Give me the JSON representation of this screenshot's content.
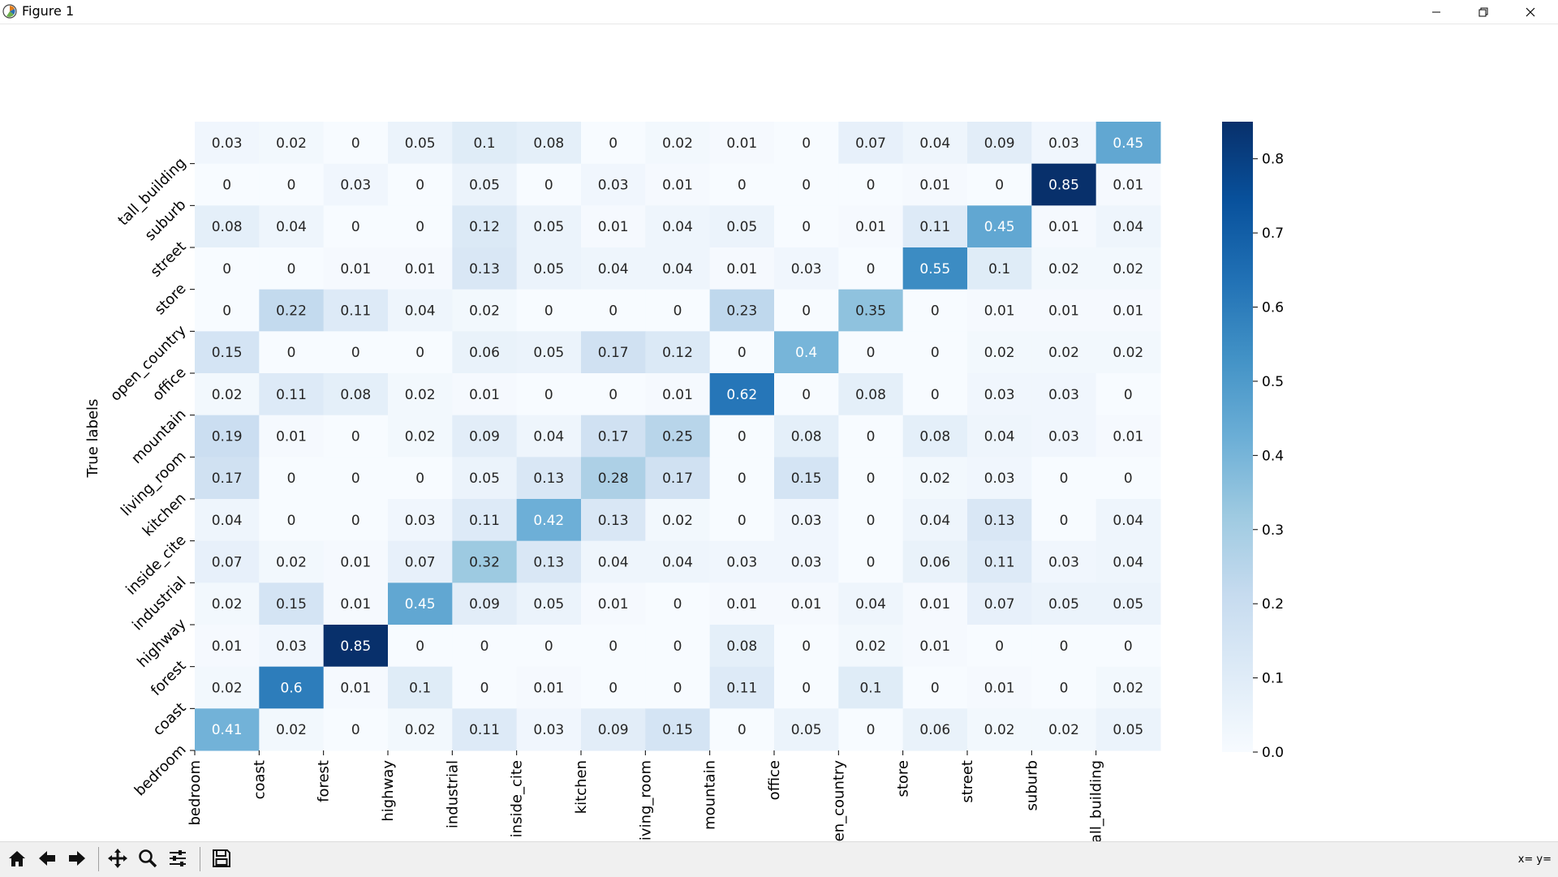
{
  "window": {
    "title": "Figure 1"
  },
  "toolbar": {
    "buttons": [
      "home-button",
      "back-button",
      "forward-button",
      "pan-button",
      "zoom-button",
      "configure-subplots-button",
      "save-button"
    ],
    "coords_text": "x= y="
  },
  "colorbar": {
    "ticks": [
      "0.0",
      "0.1",
      "0.2",
      "0.3",
      "0.4",
      "0.5",
      "0.6",
      "0.7",
      "0.8"
    ],
    "tick_values": [
      0,
      0.1,
      0.2,
      0.3,
      0.4,
      0.5,
      0.6,
      0.7,
      0.8
    ],
    "max": 0.85
  },
  "chart_data": {
    "type": "heatmap",
    "ylabel": "True labels",
    "x_tick_labels": [
      "bedroom",
      "coast",
      "forest",
      "highway",
      "industrial",
      "inside_cite",
      "kitchen",
      "living_room",
      "mountain",
      "office",
      "open_country",
      "store",
      "street",
      "suburb",
      "tall_building"
    ],
    "y_tick_labels": [
      "bedroom",
      "coast",
      "forest",
      "highway",
      "industrial",
      "inside_cite",
      "kitchen",
      "living_room",
      "mountain",
      "office",
      "open_country",
      "store",
      "street",
      "suburb",
      "tall_building"
    ],
    "rows": [
      [
        "0.03",
        "0.02",
        "0",
        "0.05",
        "0.1",
        "0.08",
        "0",
        "0.02",
        "0.01",
        "0",
        "0.07",
        "0.04",
        "0.09",
        "0.03",
        "0.45"
      ],
      [
        "0",
        "0",
        "0.03",
        "0",
        "0.05",
        "0",
        "0.03",
        "0.01",
        "0",
        "0",
        "0",
        "0.01",
        "0",
        "0.85",
        "0.01"
      ],
      [
        "0.08",
        "0.04",
        "0",
        "0",
        "0.12",
        "0.05",
        "0.01",
        "0.04",
        "0.05",
        "0",
        "0.01",
        "0.11",
        "0.45",
        "0.01",
        "0.04"
      ],
      [
        "0",
        "0",
        "0.01",
        "0.01",
        "0.13",
        "0.05",
        "0.04",
        "0.04",
        "0.01",
        "0.03",
        "0",
        "0.55",
        "0.1",
        "0.02",
        "0.02"
      ],
      [
        "0",
        "0.22",
        "0.11",
        "0.04",
        "0.02",
        "0",
        "0",
        "0",
        "0.23",
        "0",
        "0.35",
        "0",
        "0.01",
        "0.01",
        "0.01"
      ],
      [
        "0.15",
        "0",
        "0",
        "0",
        "0.06",
        "0.05",
        "0.17",
        "0.12",
        "0",
        "0.4",
        "0",
        "0",
        "0.02",
        "0.02",
        "0.02"
      ],
      [
        "0.02",
        "0.11",
        "0.08",
        "0.02",
        "0.01",
        "0",
        "0",
        "0.01",
        "0.62",
        "0",
        "0.08",
        "0",
        "0.03",
        "0.03",
        "0"
      ],
      [
        "0.19",
        "0.01",
        "0",
        "0.02",
        "0.09",
        "0.04",
        "0.17",
        "0.25",
        "0",
        "0.08",
        "0",
        "0.08",
        "0.04",
        "0.03",
        "0.01"
      ],
      [
        "0.17",
        "0",
        "0",
        "0",
        "0.05",
        "0.13",
        "0.28",
        "0.17",
        "0",
        "0.15",
        "0",
        "0.02",
        "0.03",
        "0",
        "0"
      ],
      [
        "0.04",
        "0",
        "0",
        "0.03",
        "0.11",
        "0.42",
        "0.13",
        "0.02",
        "0",
        "0.03",
        "0",
        "0.04",
        "0.13",
        "0",
        "0.04"
      ],
      [
        "0.07",
        "0.02",
        "0.01",
        "0.07",
        "0.32",
        "0.13",
        "0.04",
        "0.04",
        "0.03",
        "0.03",
        "0",
        "0.06",
        "0.11",
        "0.03",
        "0.04"
      ],
      [
        "0.02",
        "0.15",
        "0.01",
        "0.45",
        "0.09",
        "0.05",
        "0.01",
        "0",
        "0.01",
        "0.01",
        "0.04",
        "0.01",
        "0.07",
        "0.05",
        "0.05"
      ],
      [
        "0.01",
        "0.03",
        "0.85",
        "0",
        "0",
        "0",
        "0",
        "0",
        "0.08",
        "0",
        "0.02",
        "0.01",
        "0",
        "0",
        "0"
      ],
      [
        "0.02",
        "0.6",
        "0.01",
        "0.1",
        "0",
        "0.01",
        "0",
        "0",
        "0.11",
        "0",
        "0.1",
        "0",
        "0.01",
        "0",
        "0.02"
      ],
      [
        "0.41",
        "0.02",
        "0",
        "0.02",
        "0.11",
        "0.03",
        "0.09",
        "0.15",
        "0",
        "0.05",
        "0",
        "0.06",
        "0.02",
        "0.02",
        "0.05"
      ]
    ],
    "colormap": "Blues",
    "vmin": 0,
    "vmax": 0.85,
    "grid": false
  }
}
